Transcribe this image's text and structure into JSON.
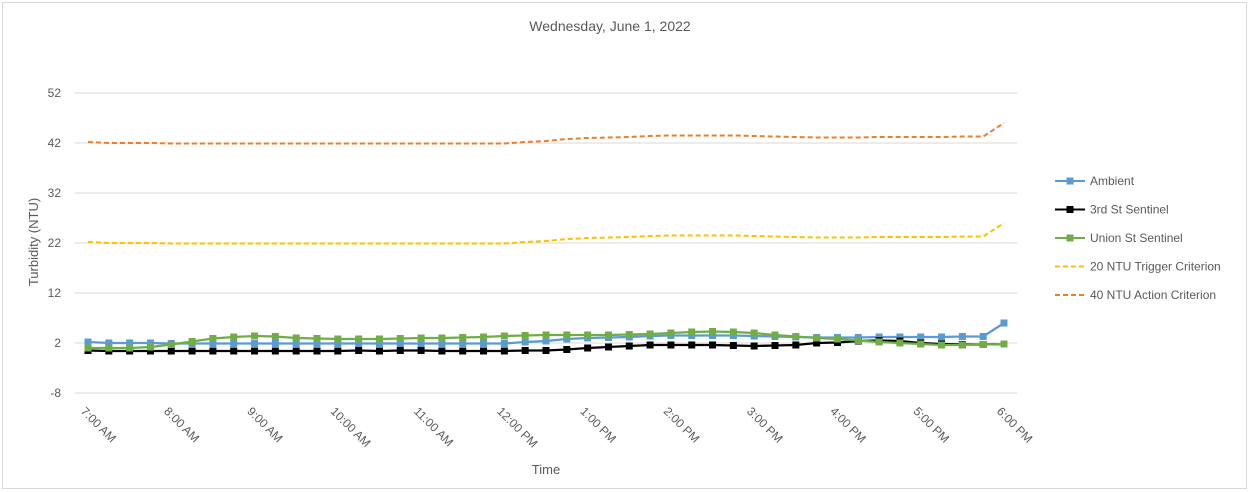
{
  "chart_data": {
    "type": "line",
    "title": "Wednesday, June 1, 2022",
    "xlabel": "Time",
    "ylabel": "Turbidity (NTU)",
    "ylim": [
      -8,
      52
    ],
    "yticks": [
      "-8",
      "2",
      "12",
      "22",
      "32",
      "42",
      "52"
    ],
    "ytick_values": [
      -8,
      2,
      12,
      22,
      32,
      42,
      52
    ],
    "xlim": [
      7.0,
      18.0
    ],
    "xticks": [
      "7:00 AM",
      "8:00 AM",
      "9:00 AM",
      "10:00 AM",
      "11:00 AM",
      "12:00 PM",
      "1:00 PM",
      "2:00 PM",
      "3:00 PM",
      "4:00 PM",
      "5:00 PM",
      "6:00 PM"
    ],
    "xtick_values": [
      7,
      8,
      9,
      10,
      11,
      12,
      13,
      14,
      15,
      16,
      17,
      18
    ],
    "x": [
      7.0,
      7.25,
      7.5,
      7.75,
      8.0,
      8.25,
      8.5,
      8.75,
      9.0,
      9.25,
      9.5,
      9.75,
      10.0,
      10.25,
      10.5,
      10.75,
      11.0,
      11.25,
      11.5,
      11.75,
      12.0,
      12.25,
      12.5,
      12.75,
      13.0,
      13.25,
      13.5,
      13.75,
      14.0,
      14.25,
      14.5,
      14.75,
      15.0,
      15.25,
      15.5,
      15.75,
      16.0,
      16.25,
      16.5,
      16.75,
      17.0,
      17.25,
      17.5,
      17.75,
      18.0
    ],
    "grid": true,
    "legend_position": "right",
    "series": [
      {
        "name": "Ambient",
        "color": "#5b9bd5",
        "style": "solid",
        "marker": "square",
        "values": [
          2.2,
          2.0,
          2.0,
          2.0,
          1.9,
          1.9,
          1.9,
          1.9,
          1.9,
          1.9,
          1.9,
          1.9,
          1.9,
          1.9,
          1.9,
          1.9,
          1.9,
          1.9,
          1.9,
          1.9,
          1.9,
          2.2,
          2.4,
          2.8,
          3.0,
          3.1,
          3.2,
          3.4,
          3.5,
          3.5,
          3.5,
          3.5,
          3.4,
          3.3,
          3.2,
          3.1,
          3.1,
          3.1,
          3.2,
          3.2,
          3.2,
          3.2,
          3.3,
          3.3,
          6.0
        ]
      },
      {
        "name": "3rd St Sentinel",
        "color": "#000000",
        "style": "solid",
        "marker": "square",
        "values": [
          0.5,
          0.4,
          0.4,
          0.4,
          0.4,
          0.4,
          0.4,
          0.4,
          0.4,
          0.4,
          0.4,
          0.4,
          0.4,
          0.5,
          0.4,
          0.5,
          0.5,
          0.4,
          0.4,
          0.4,
          0.4,
          0.5,
          0.5,
          0.7,
          1.0,
          1.2,
          1.4,
          1.6,
          1.6,
          1.6,
          1.6,
          1.5,
          1.4,
          1.5,
          1.6,
          2.0,
          2.1,
          2.4,
          2.5,
          2.4,
          2.0,
          1.8,
          1.7,
          1.7,
          1.8
        ]
      },
      {
        "name": "Union St Sentinel",
        "color": "#70ad47",
        "style": "solid",
        "marker": "square",
        "values": [
          1.0,
          1.0,
          1.0,
          1.2,
          1.7,
          2.3,
          2.9,
          3.2,
          3.4,
          3.3,
          3.0,
          2.9,
          2.8,
          2.8,
          2.8,
          2.9,
          3.0,
          3.0,
          3.1,
          3.2,
          3.4,
          3.5,
          3.6,
          3.6,
          3.6,
          3.6,
          3.7,
          3.8,
          4.0,
          4.2,
          4.3,
          4.2,
          4.0,
          3.6,
          3.3,
          3.0,
          2.8,
          2.5,
          2.2,
          2.0,
          1.8,
          1.6,
          1.6,
          1.7,
          1.8
        ]
      },
      {
        "name": "20 NTU Trigger Criterion",
        "color": "#ffc000",
        "style": "dashed",
        "marker": "none",
        "values": [
          22.2,
          22.0,
          22.0,
          22.0,
          21.9,
          21.9,
          21.9,
          21.9,
          21.9,
          21.9,
          21.9,
          21.9,
          21.9,
          21.9,
          21.9,
          21.9,
          21.9,
          21.9,
          21.9,
          21.9,
          21.9,
          22.2,
          22.4,
          22.8,
          23.0,
          23.1,
          23.2,
          23.4,
          23.5,
          23.5,
          23.5,
          23.5,
          23.4,
          23.3,
          23.2,
          23.1,
          23.1,
          23.1,
          23.2,
          23.2,
          23.2,
          23.2,
          23.3,
          23.3,
          26.0
        ]
      },
      {
        "name": "40 NTU Action Criterion",
        "color": "#ed7d31",
        "style": "dashed",
        "marker": "none",
        "values": [
          42.2,
          42.0,
          42.0,
          42.0,
          41.9,
          41.9,
          41.9,
          41.9,
          41.9,
          41.9,
          41.9,
          41.9,
          41.9,
          41.9,
          41.9,
          41.9,
          41.9,
          41.9,
          41.9,
          41.9,
          41.9,
          42.2,
          42.4,
          42.8,
          43.0,
          43.1,
          43.2,
          43.4,
          43.5,
          43.5,
          43.5,
          43.5,
          43.4,
          43.3,
          43.2,
          43.1,
          43.1,
          43.1,
          43.2,
          43.2,
          43.2,
          43.2,
          43.3,
          43.3,
          46.0
        ]
      }
    ]
  }
}
